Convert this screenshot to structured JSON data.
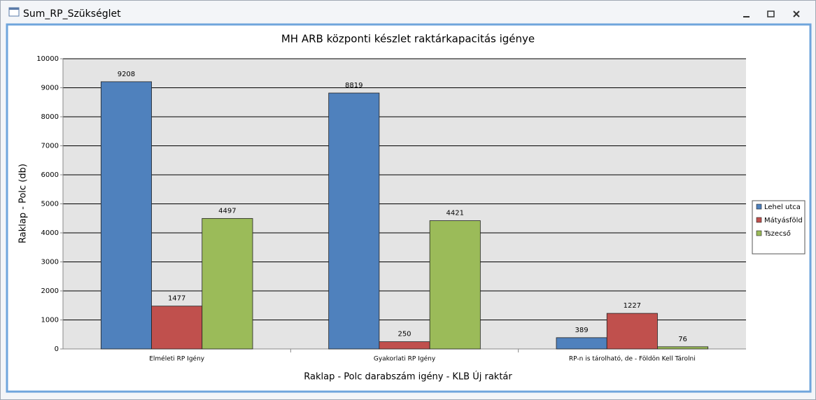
{
  "window": {
    "title": "Sum_RP_Szükséglet"
  },
  "chart_data": {
    "type": "bar",
    "title": "MH ARB központi készlet raktárkapacitás igénye",
    "x_label": "Raklap - Polc darabszám igény - KLB Új raktár",
    "y_label": "Raklap - Polc (db)",
    "categories": [
      "Elméleti RP Igény",
      "Gyakorlati RP Igény",
      "RP-n is tárolható, de - Földön Kell Tárolni"
    ],
    "series": [
      {
        "name": "Lehel utca",
        "color": "#4f81bd",
        "values": [
          9208,
          8819,
          389
        ]
      },
      {
        "name": "Mátyásföld",
        "color": "#c0504d",
        "values": [
          1477,
          250,
          1227
        ]
      },
      {
        "name": "Tszecső",
        "color": "#9bbb59",
        "values": [
          4497,
          4421,
          76
        ]
      }
    ],
    "ylim": [
      0,
      10000
    ],
    "yticks": [
      0,
      1000,
      2000,
      3000,
      4000,
      5000,
      6000,
      7000,
      8000,
      9000,
      10000
    ],
    "grid": true,
    "legend": "right"
  }
}
